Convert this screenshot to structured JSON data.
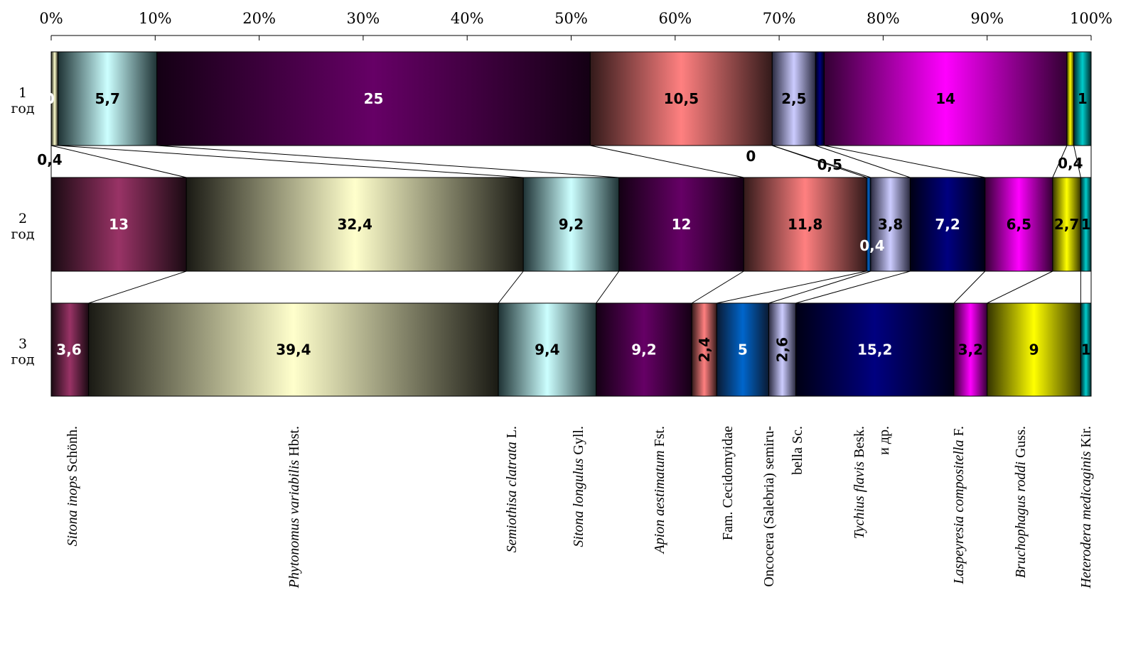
{
  "chart_data": {
    "type": "bar",
    "stacked": true,
    "orientation": "horizontal",
    "normalized": true,
    "x_ticks": [
      "0%",
      "10%",
      "20%",
      "30%",
      "40%",
      "50%",
      "60%",
      "70%",
      "80%",
      "90%",
      "100%"
    ],
    "xlim": [
      0,
      100
    ],
    "grid": false,
    "legend": "none",
    "categories": [
      {
        "line1": "1",
        "line2": "год"
      },
      {
        "line1": "2",
        "line2": "год"
      },
      {
        "line1": "3",
        "line2": "год"
      }
    ],
    "series": [
      {
        "key": "sitona_inops",
        "color": "#993366",
        "edge": "#1a0a12",
        "text": "#ffffff",
        "values": [
          0,
          13,
          3.6
        ],
        "labels": [
          "0",
          "13",
          "3,6"
        ]
      },
      {
        "key": "phytonomus",
        "color": "#ffffcc",
        "edge": "#1a1a14",
        "text": "#000000",
        "values": [
          0.4,
          32.4,
          39.4
        ],
        "labels": [
          "0,4",
          "32,4",
          "39,4"
        ]
      },
      {
        "key": "semiothisa",
        "color": "#ccffff",
        "edge": "#1f3335",
        "text": "#000000",
        "values": [
          5.7,
          9.2,
          9.4
        ],
        "labels": [
          "5,7",
          "9,2",
          "9,4"
        ]
      },
      {
        "key": "sitona_longulus",
        "color": "#660066",
        "edge": "#140014",
        "text": "#ffffff",
        "values": [
          25,
          12,
          9.2
        ],
        "labels": [
          "25",
          "12",
          "9,2"
        ]
      },
      {
        "key": "apion",
        "color": "#ff8080",
        "edge": "#331a1a",
        "text": "#000000",
        "values": [
          10.5,
          11.8,
          2.4
        ],
        "labels": [
          "10,5",
          "11,8",
          "2,4"
        ]
      },
      {
        "key": "cecidomyidae",
        "color": "#0066cc",
        "edge": "#0a1a33",
        "text": "#ffffff",
        "values": [
          0,
          0.4,
          5
        ],
        "labels": [
          "0",
          "0,4",
          "5"
        ]
      },
      {
        "key": "oncocera",
        "color": "#ccccff",
        "edge": "#2a2a40",
        "text": "#000000",
        "values": [
          2.5,
          3.8,
          2.6
        ],
        "labels": [
          "2,5",
          "3,8",
          "2,6"
        ]
      },
      {
        "key": "tychius",
        "color": "#000080",
        "edge": "#000014",
        "text": "#ffffff",
        "values": [
          0.5,
          7.2,
          15.2
        ],
        "labels": [
          "0,5",
          "7,2",
          "15,2"
        ]
      },
      {
        "key": "laspeyresia",
        "color": "#ff00ff",
        "edge": "#330033",
        "text": "#000000",
        "values": [
          14,
          6.5,
          3.2
        ],
        "labels": [
          "14",
          "6,5",
          "3,2"
        ]
      },
      {
        "key": "bruchophagus",
        "color": "#ffff00",
        "edge": "#333300",
        "text": "#000000",
        "values": [
          0.4,
          2.7,
          9
        ],
        "labels": [
          "0,4",
          "2,7",
          "9"
        ]
      },
      {
        "key": "heterodera",
        "color": "#00cccc",
        "edge": "#002a2a",
        "text": "#000000",
        "values": [
          1,
          1,
          1
        ],
        "labels": [
          "1",
          "1",
          "1"
        ]
      }
    ],
    "label_positions": [
      [
        "inside",
        "below",
        "inside",
        "inside",
        "inside",
        "below",
        "inside",
        "below",
        "inside",
        "above",
        "inside"
      ],
      [
        "inside",
        "inside",
        "inside",
        "inside",
        "inside",
        "below",
        "inside",
        "inside",
        "inside",
        "inside",
        "inside"
      ],
      [
        "inside",
        "inside",
        "inside",
        "inside",
        "rotated",
        "inside",
        "rotated",
        "inside",
        "inside",
        "inside",
        "inside"
      ]
    ],
    "species_labels": [
      [
        {
          "i": "Sitona inops",
          "n": " Schönh."
        }
      ],
      [
        {
          "i": "Phytonomus variabilis",
          "n": " Hbst."
        }
      ],
      [
        {
          "i": "Semiothisa clatrata",
          "n": " L."
        }
      ],
      [
        {
          "i": "Sitona longulus",
          "n": " Gyll."
        }
      ],
      [
        {
          "i": "Apion aestimatum",
          "n": " Fst."
        }
      ],
      [
        {
          "i": "",
          "n": "Fam. Cecidomyidae"
        }
      ],
      [
        {
          "i": "",
          "n": "Oncocera (Salebria) semiru-"
        },
        {
          "i": "",
          "n": "bella Sc."
        }
      ],
      [
        {
          "i": "Tychius flavis",
          "n": " Besk."
        },
        {
          "i": "",
          "n": "и др."
        }
      ],
      [
        {
          "i": "Laspeyresia compositella",
          "n": " F."
        }
      ],
      [
        {
          "i": "Bruchophagus roddi",
          "n": " Guss."
        }
      ],
      [
        {
          "i": "Heterodera medicaginis",
          "n": " Kir."
        }
      ]
    ]
  }
}
